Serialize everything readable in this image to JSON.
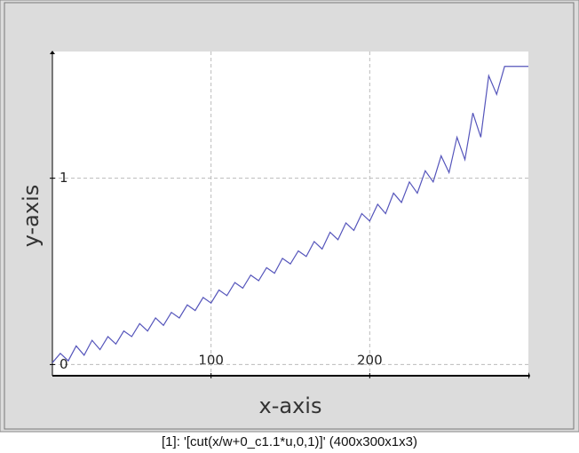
{
  "chart_data": {
    "type": "line",
    "x_label": "x-axis",
    "y_label": "y-axis",
    "caption": "[1]: '[cut(x/w+0_c1.1*u,0,1)]' (400x300x1x3)",
    "xlim": [
      0,
      300
    ],
    "ylim": [
      -0.06,
      1.68
    ],
    "xticks": [
      100,
      200
    ],
    "yticks": [
      0,
      1
    ],
    "grid": true,
    "series": [
      {
        "color": "#5555bb",
        "x": [
          0,
          5,
          10,
          15,
          20,
          25,
          30,
          35,
          40,
          45,
          50,
          55,
          60,
          65,
          70,
          75,
          80,
          85,
          90,
          95,
          100,
          105,
          110,
          115,
          120,
          125,
          130,
          135,
          140,
          145,
          150,
          155,
          160,
          165,
          170,
          175,
          180,
          185,
          190,
          195,
          200,
          205,
          210,
          215,
          220,
          225,
          230,
          235,
          240,
          245,
          250,
          255,
          260,
          265,
          270,
          275,
          280,
          285,
          290,
          295,
          300
        ],
        "values": [
          0.01,
          0.06,
          0.02,
          0.1,
          0.05,
          0.13,
          0.08,
          0.15,
          0.11,
          0.18,
          0.15,
          0.22,
          0.18,
          0.25,
          0.21,
          0.28,
          0.25,
          0.32,
          0.29,
          0.36,
          0.33,
          0.4,
          0.37,
          0.44,
          0.41,
          0.48,
          0.45,
          0.52,
          0.49,
          0.57,
          0.54,
          0.61,
          0.58,
          0.66,
          0.62,
          0.71,
          0.67,
          0.76,
          0.72,
          0.81,
          0.77,
          0.86,
          0.81,
          0.92,
          0.87,
          0.98,
          0.92,
          1.04,
          0.98,
          1.12,
          1.03,
          1.22,
          1.1,
          1.35,
          1.22,
          1.55,
          1.45,
          1.6,
          1.6,
          1.6,
          1.6
        ]
      }
    ]
  }
}
